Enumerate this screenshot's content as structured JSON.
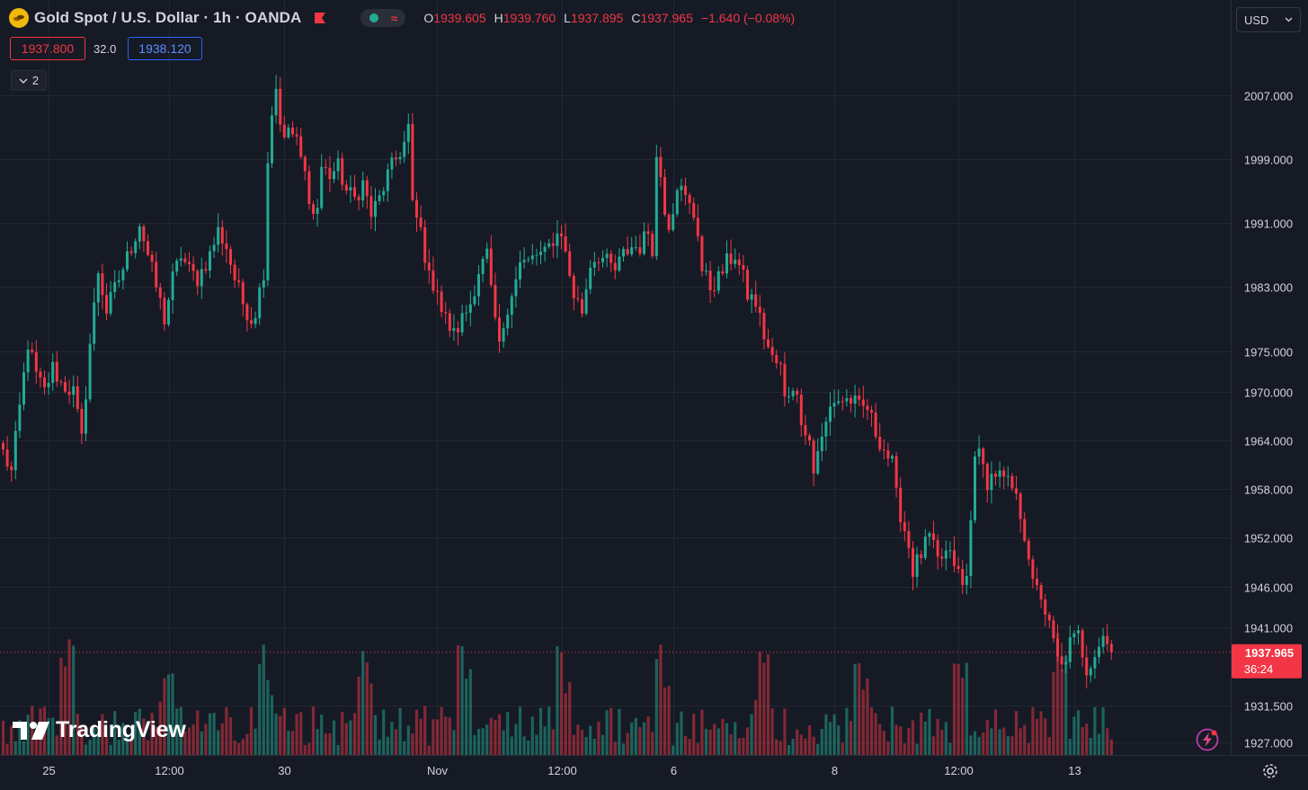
{
  "header": {
    "symbol_title": "Gold Spot / U.S. Dollar · 1h · OANDA",
    "ohlc": {
      "o_label": "O",
      "o_value": "1939.605",
      "h_label": "H",
      "h_value": "1939.760",
      "l_label": "L",
      "l_value": "1937.895",
      "c_label": "C",
      "c_value": "1937.965",
      "change": "−1.640 (−0.08%)"
    },
    "sell_price": "1937.800",
    "spread": "32.0",
    "buy_price": "1938.120",
    "indicators_count": "2",
    "currency": "USD"
  },
  "brand": "TradingView",
  "colors": {
    "background": "#161a25",
    "up": "#22ab94",
    "down": "#f23645",
    "grid": "#232732",
    "text": "#d1d4dc"
  },
  "chart_data": {
    "type": "candlestick",
    "title": "Gold Spot / U.S. Dollar · 1h · OANDA",
    "timeframe": "1h",
    "y_ticks": [
      "2007.000",
      "1999.000",
      "1991.000",
      "1983.000",
      "1975.000",
      "1970.000",
      "1964.000",
      "1958.000",
      "1952.000",
      "1946.000",
      "1941.000",
      "1931.500",
      "1927.000"
    ],
    "y_tick_values": [
      2007,
      1999,
      1991,
      1983,
      1975,
      1970,
      1964,
      1958,
      1952,
      1946,
      1941,
      1931.5,
      1927
    ],
    "x_ticks": [
      "25",
      "12:00",
      "30",
      "Nov",
      "12:00",
      "6",
      "8",
      "12:00",
      "13"
    ],
    "x_tick_bar_index": [
      11,
      40,
      68,
      105,
      135,
      162,
      201,
      231,
      259
    ],
    "grid": true,
    "last_price_label": "1937.965",
    "countdown_label": "36:24",
    "anchors": [
      [
        0,
        1962.5
      ],
      [
        2,
        1960
      ],
      [
        4,
        1968
      ],
      [
        6,
        1976
      ],
      [
        8,
        1972
      ],
      [
        10,
        1970
      ],
      [
        12,
        1973
      ],
      [
        14,
        1971
      ],
      [
        17,
        1970
      ],
      [
        19,
        1964
      ],
      [
        21,
        1976
      ],
      [
        23,
        1985
      ],
      [
        25,
        1980
      ],
      [
        28,
        1984
      ],
      [
        31,
        1988
      ],
      [
        33,
        1991
      ],
      [
        35,
        1987
      ],
      [
        37,
        1983
      ],
      [
        39,
        1979
      ],
      [
        41,
        1984
      ],
      [
        43,
        1987
      ],
      [
        45,
        1985
      ],
      [
        47,
        1984
      ],
      [
        50,
        1987
      ],
      [
        52,
        1990
      ],
      [
        54,
        1988
      ],
      [
        56,
        1984
      ],
      [
        58,
        1981
      ],
      [
        60,
        1979
      ],
      [
        61,
        1980
      ],
      [
        63,
        1985
      ],
      [
        64,
        1999
      ],
      [
        65,
        2005
      ],
      [
        66,
        2008
      ],
      [
        67,
        2004
      ],
      [
        68,
        2001
      ],
      [
        69,
        2003
      ],
      [
        71,
        2001
      ],
      [
        73,
        1997
      ],
      [
        75,
        1992
      ],
      [
        76,
        1993
      ],
      [
        77,
        1998
      ],
      [
        79,
        1997
      ],
      [
        81,
        1998
      ],
      [
        83,
        1995
      ],
      [
        85,
        1994
      ],
      [
        87,
        1996
      ],
      [
        89,
        1992
      ],
      [
        91,
        1994
      ],
      [
        93,
        1997
      ],
      [
        95,
        1999
      ],
      [
        97,
        2001
      ],
      [
        98,
        2003
      ],
      [
        99,
        1993
      ],
      [
        101,
        1990
      ],
      [
        103,
        1984
      ],
      [
        105,
        1983
      ],
      [
        106,
        1980
      ],
      [
        108,
        1978
      ],
      [
        109,
        1977
      ],
      [
        111,
        1979
      ],
      [
        113,
        1981
      ],
      [
        115,
        1985
      ],
      [
        117,
        1987
      ],
      [
        119,
        1978
      ],
      [
        120,
        1976
      ],
      [
        121,
        1977
      ],
      [
        123,
        1983
      ],
      [
        125,
        1986
      ],
      [
        127,
        1986
      ],
      [
        129,
        1987
      ],
      [
        131,
        1987
      ],
      [
        133,
        1989
      ],
      [
        135,
        1990
      ],
      [
        136,
        1987
      ],
      [
        138,
        1982
      ],
      [
        140,
        1980
      ],
      [
        142,
        1986
      ],
      [
        144,
        1987
      ],
      [
        146,
        1986
      ],
      [
        148,
        1985
      ],
      [
        150,
        1987
      ],
      [
        152,
        1988
      ],
      [
        154,
        1988
      ],
      [
        156,
        1990
      ],
      [
        157,
        1988
      ],
      [
        158,
        1999
      ],
      [
        159,
        1997
      ],
      [
        160,
        1993
      ],
      [
        161,
        1991
      ],
      [
        162,
        1993
      ],
      [
        163,
        1996
      ],
      [
        165,
        1994
      ],
      [
        167,
        1992
      ],
      [
        168,
        1990
      ],
      [
        169,
        1985
      ],
      [
        171,
        1983
      ],
      [
        173,
        1984
      ],
      [
        175,
        1986
      ],
      [
        177,
        1987
      ],
      [
        179,
        1984
      ],
      [
        180,
        1982
      ],
      [
        182,
        1981
      ],
      [
        184,
        1977
      ],
      [
        186,
        1974
      ],
      [
        188,
        1973
      ],
      [
        189,
        1969
      ],
      [
        191,
        1971
      ],
      [
        193,
        1967
      ],
      [
        195,
        1964
      ],
      [
        196,
        1960
      ],
      [
        197,
        1963
      ],
      [
        198,
        1964
      ],
      [
        200,
        1968
      ],
      [
        201,
        1969
      ],
      [
        203,
        1969
      ],
      [
        205,
        1969
      ],
      [
        207,
        1968
      ],
      [
        209,
        1968
      ],
      [
        211,
        1965
      ],
      [
        213,
        1963
      ],
      [
        215,
        1961
      ],
      [
        216,
        1957
      ],
      [
        218,
        1953
      ],
      [
        219,
        1951
      ],
      [
        220,
        1948
      ],
      [
        222,
        1950
      ],
      [
        224,
        1952
      ],
      [
        226,
        1949
      ],
      [
        228,
        1950
      ],
      [
        230,
        1949
      ],
      [
        232,
        1946
      ],
      [
        233,
        1947
      ],
      [
        234,
        1954
      ],
      [
        235,
        1963
      ],
      [
        236,
        1962
      ],
      [
        238,
        1959
      ],
      [
        240,
        1960
      ],
      [
        242,
        1959
      ],
      [
        244,
        1958
      ],
      [
        246,
        1955
      ],
      [
        248,
        1950
      ],
      [
        249,
        1946
      ],
      [
        251,
        1945
      ],
      [
        253,
        1941
      ],
      [
        255,
        1937
      ],
      [
        256,
        1936
      ],
      [
        258,
        1939
      ],
      [
        260,
        1940
      ],
      [
        262,
        1936
      ],
      [
        264,
        1938
      ],
      [
        266,
        1940
      ],
      [
        268,
        1937.965
      ]
    ]
  }
}
